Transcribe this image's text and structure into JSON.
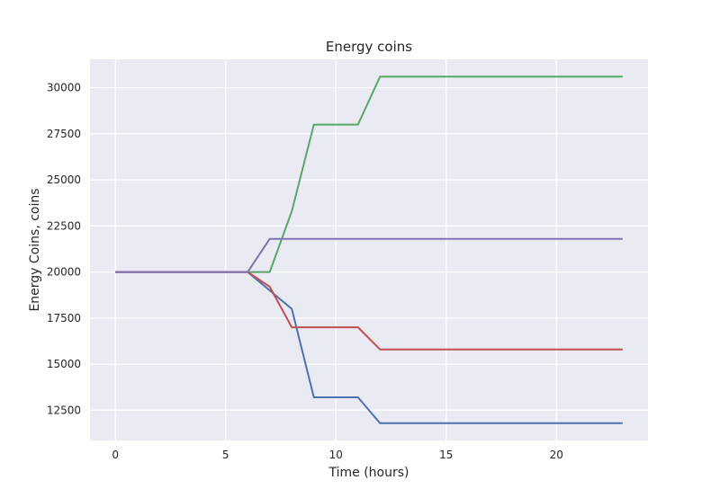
{
  "chart_data": {
    "type": "line",
    "title": "Energy coins",
    "xlabel": "Time (hours)",
    "ylabel": "Energy Coins, coins",
    "xlim": [
      -1.15,
      24.15
    ],
    "ylim": [
      10860,
      31540
    ],
    "xticks": [
      0,
      5,
      10,
      15,
      20
    ],
    "yticks": [
      12500,
      15000,
      17500,
      20000,
      22500,
      25000,
      27500,
      30000
    ],
    "grid": true,
    "legend": "none",
    "background": "#EAEAF2",
    "grid_color": "#FFFFFF",
    "x": [
      0,
      1,
      2,
      3,
      4,
      5,
      6,
      7,
      8,
      9,
      10,
      11,
      12,
      13,
      14,
      15,
      16,
      17,
      18,
      19,
      20,
      21,
      22,
      23
    ],
    "series": [
      {
        "color": "#4C72B0",
        "values": [
          20000,
          20000,
          20000,
          20000,
          20000,
          20000,
          20000,
          19000,
          18000,
          13200,
          13200,
          13200,
          11800,
          11800,
          11800,
          11800,
          11800,
          11800,
          11800,
          11800,
          11800,
          11800,
          11800,
          11800
        ]
      },
      {
        "color": "#55A868",
        "values": [
          20000,
          20000,
          20000,
          20000,
          20000,
          20000,
          20000,
          20000,
          23300,
          28000,
          28000,
          28000,
          30600,
          30600,
          30600,
          30600,
          30600,
          30600,
          30600,
          30600,
          30600,
          30600,
          30600,
          30600
        ]
      },
      {
        "color": "#C44E52",
        "values": [
          20000,
          20000,
          20000,
          20000,
          20000,
          20000,
          20000,
          19200,
          17000,
          17000,
          17000,
          17000,
          15800,
          15800,
          15800,
          15800,
          15800,
          15800,
          15800,
          15800,
          15800,
          15800,
          15800,
          15800
        ]
      },
      {
        "color": "#8172B2",
        "values": [
          20000,
          20000,
          20000,
          20000,
          20000,
          20000,
          20000,
          21800,
          21800,
          21800,
          21800,
          21800,
          21800,
          21800,
          21800,
          21800,
          21800,
          21800,
          21800,
          21800,
          21800,
          21800,
          21800,
          21800
        ]
      }
    ]
  }
}
